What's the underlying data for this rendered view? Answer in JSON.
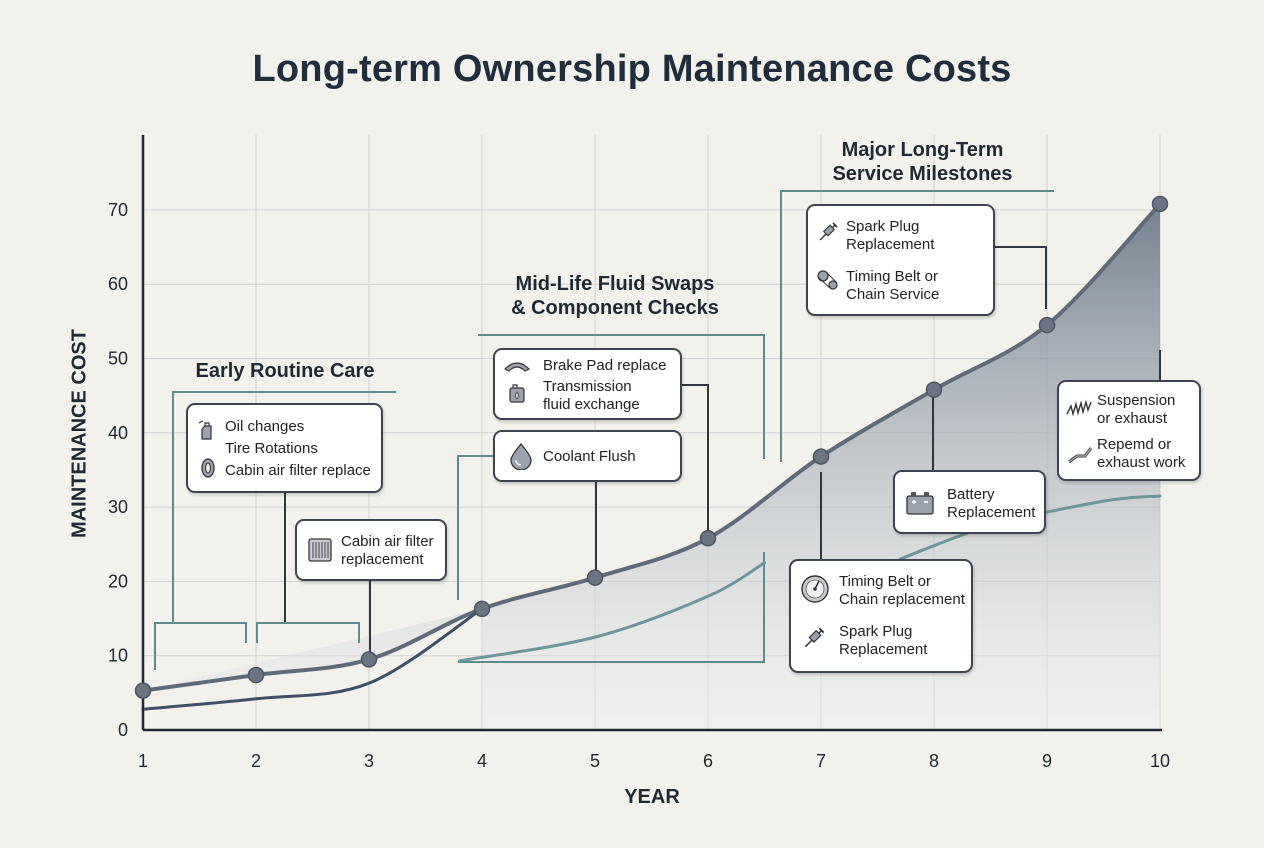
{
  "chart_data": {
    "type": "line",
    "title": "Long-term Ownership Maintenance Costs",
    "xlabel": "YEAR",
    "ylabel": "MAINTENANCE COST",
    "xlim": [
      1,
      10
    ],
    "ylim": [
      0,
      80
    ],
    "x_ticks": [
      1,
      2,
      3,
      4,
      5,
      6,
      7,
      8,
      9,
      10
    ],
    "y_ticks": [
      0,
      10,
      20,
      30,
      40,
      50,
      60,
      70
    ],
    "grid": true,
    "series": [
      {
        "x": [
          1,
          2,
          3,
          4,
          5,
          6,
          7,
          8,
          9,
          10
        ],
        "y": [
          5.3,
          7.4,
          9.5,
          16.3,
          20.5,
          25.8,
          36.8,
          45.8,
          54.5,
          70.8
        ],
        "markers": true,
        "filled": true
      },
      {
        "x": [
          1,
          2,
          3,
          4
        ],
        "y": [
          2.8,
          4.2,
          6.3,
          16.3
        ],
        "markers": false
      },
      {
        "x": [
          3.8,
          5,
          6,
          6.5
        ],
        "y": [
          9.3,
          12.5,
          18,
          22.5
        ],
        "markers": false
      },
      {
        "x": [
          7.7,
          8.5,
          9.5,
          10
        ],
        "y": [
          23,
          27.5,
          30.8,
          31.5
        ],
        "markers": false
      }
    ]
  },
  "colors": {
    "primary_line": "#5f6b7b",
    "secondary_line": "#3f4f66",
    "teal_line": "#6c9698",
    "bracket": "#5f8b8c",
    "fill_top": "#6e7b8b",
    "fill_bottom": "#eef0f2",
    "grid": "#cfd2d4",
    "axis": "#1f2933"
  },
  "groups": {
    "early": "Early Routine Care",
    "mid": "Mid-Life Fluid Swaps\n& Component Checks",
    "major": "Major Long-Term\nService Milestones"
  },
  "callouts": {
    "early_box": [
      {
        "icon": "oil-bottle-icon",
        "label": "Oil changes"
      },
      {
        "icon": "",
        "label": "Tire Rotations"
      },
      {
        "icon": "tire-icon",
        "label": "Cabin air filter replace"
      }
    ],
    "cabin_box": [
      {
        "icon": "air-filter-icon",
        "label": "Cabin air filter\nreplacement"
      }
    ],
    "brake_box": [
      {
        "icon": "brake-pad-icon",
        "label": "Brake Pad replace"
      },
      {
        "icon": "fluid-container-icon",
        "label": "Transmission\nfluid exchange"
      }
    ],
    "coolant_box": [
      {
        "icon": "droplet-icon",
        "label": "Coolant Flush"
      }
    ],
    "spark_top_box": [
      {
        "icon": "spark-plug-icon",
        "label": "Spark Plug\nReplacement"
      },
      {
        "icon": "timing-belt-icon",
        "label": "Timing Belt or\nChain Service"
      }
    ],
    "suspension_box": [
      {
        "icon": "spring-icon",
        "label": "Suspension\nor exhaust"
      },
      {
        "icon": "exhaust-pipe-icon",
        "label": "Repemd or\nexhaust work"
      }
    ],
    "battery_box": [
      {
        "icon": "battery-icon",
        "label": "Battery\nReplacement"
      }
    ],
    "timing_box": [
      {
        "icon": "gauge-icon",
        "label": "Timing Belt or\nChain replacement"
      },
      {
        "icon": "spark-plug-icon",
        "label": "Spark Plug\nReplacement"
      }
    ]
  }
}
